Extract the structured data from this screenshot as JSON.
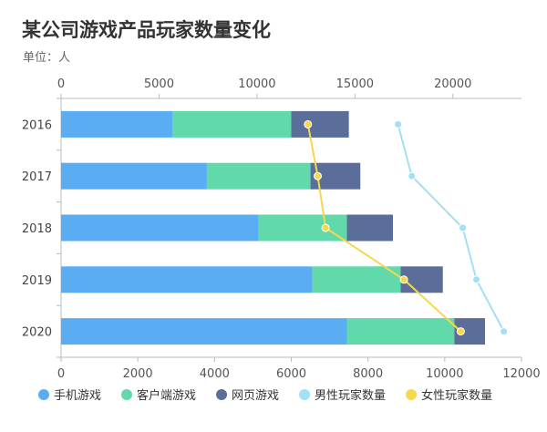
{
  "chart_data": {
    "type": "bar",
    "orientation": "horizontal",
    "stacked": true,
    "title": "某公司游戏产品玩家数量变化",
    "subtitle": "单位：人",
    "categories": [
      "2016",
      "2017",
      "2018",
      "2019",
      "2020"
    ],
    "bar_series": [
      {
        "name": "手机游戏",
        "color": "#5AADF2",
        "values": [
          2900,
          3800,
          5150,
          6550,
          7450
        ]
      },
      {
        "name": "客户端游戏",
        "color": "#61D9AA",
        "values": [
          3100,
          2700,
          2300,
          2300,
          2800
        ]
      },
      {
        "name": "网页游戏",
        "color": "#5B6E99",
        "values": [
          1500,
          1300,
          1200,
          1100,
          800
        ]
      }
    ],
    "line_series": [
      {
        "name": "男性玩家数量",
        "color": "#A3DFF5",
        "axis": "top",
        "values": [
          17200,
          17900,
          20500,
          21200,
          22600
        ]
      },
      {
        "name": "女性玩家数量",
        "color": "#F7D84D",
        "axis": "top",
        "values": [
          12600,
          13100,
          13500,
          17500,
          20400
        ]
      }
    ],
    "bottom_axis": {
      "range": [
        0,
        12000
      ],
      "ticks": [
        "0",
        "2000",
        "4000",
        "6000",
        "8000",
        "10000",
        "12000"
      ]
    },
    "top_axis": {
      "range": [
        0,
        23500
      ],
      "ticks": [
        "0",
        "5000",
        "10000",
        "15000",
        "20000"
      ]
    },
    "legend_position": "bottom",
    "grid": false
  }
}
